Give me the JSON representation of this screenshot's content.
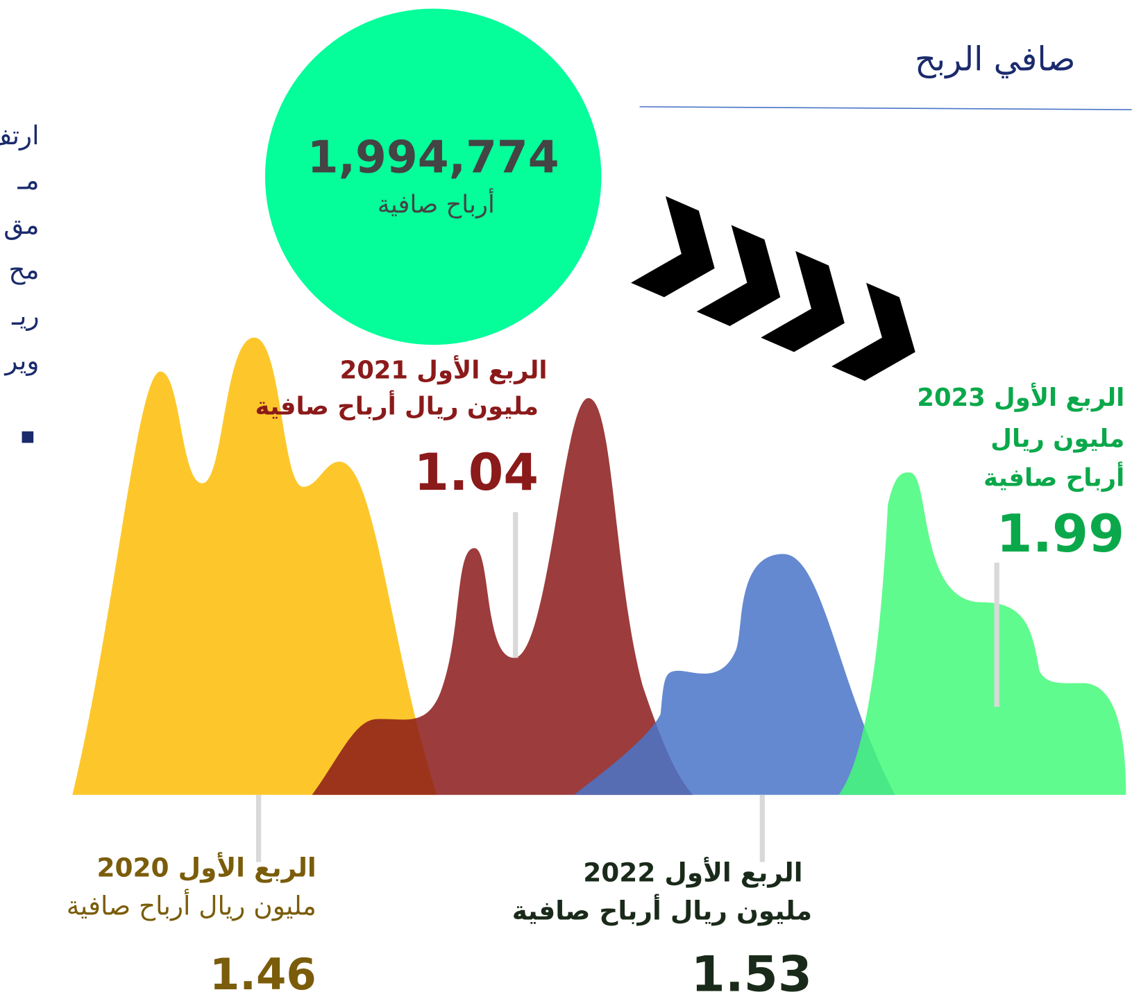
{
  "header": {
    "title": "صافي الربح"
  },
  "side_text": [
    "ارتف",
    "مـ",
    "مق",
    "مح",
    "ريـ",
    "وير"
  ],
  "total": {
    "value": "1,994,774",
    "label": "أرباح صافية"
  },
  "quarters": [
    {
      "period": "الربع الأول 2020",
      "unit_lines": [
        "مليون ريال أرباح صافية"
      ],
      "value": "1.46"
    },
    {
      "period": "الربع الأول 2021",
      "unit_lines": [
        "مليون ريال أرباح صافية"
      ],
      "value": "1.04"
    },
    {
      "period": "الربع الأول 2022",
      "unit_lines": [
        "مليون ريال أرباح صافية"
      ],
      "value": "1.53"
    },
    {
      "period": "الربع الأول 2023",
      "unit_lines": [
        "مليون ريال",
        "أرباح صافية"
      ],
      "value": "1.99"
    }
  ]
}
